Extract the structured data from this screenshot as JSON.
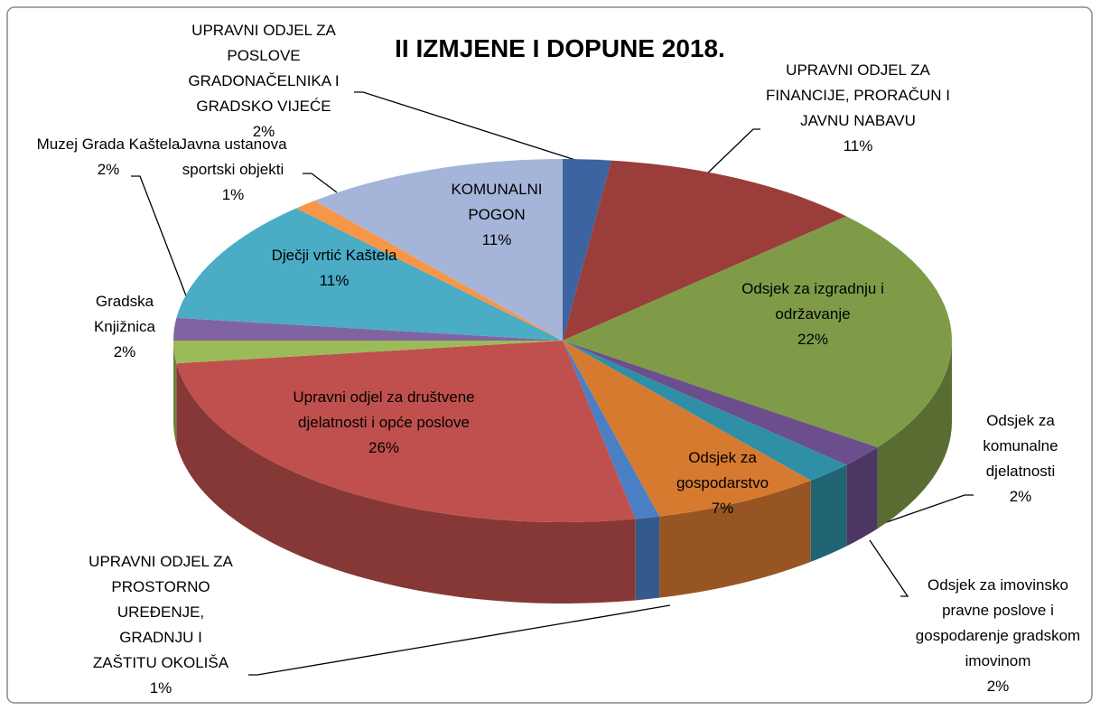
{
  "chart_data": {
    "type": "pie",
    "title": "II IZMJENE I DOPUNE 2018.",
    "categories": [
      "UPRAVNI ODJEL ZA POSLOVE GRADONAČELNIKA I GRADSKO VIJEĆE",
      "UPRAVNI ODJEL ZA FINANCIJE, PRORAČUN I JAVNU NABAVU",
      "Odsjek za izgradnju i održavanje",
      "Odsjek za komunalne djelatnosti",
      "Odsjek za imovinsko pravne poslove i gospodarenje gradskom imovinom",
      "Odsjek za gospodarstvo",
      "UPRAVNI ODJEL ZA PROSTORNO UREĐENJE, GRADNJU I ZAŠTITU OKOLIŠA",
      "Upravni odjel za društvene djelatnosti i opće poslove",
      "Gradska Knjižnica",
      "Muzej Grada Kaštela",
      "Dječji vrtić Kaštela",
      "Javna ustanova sportski objekti",
      "KOMUNALNI POGON"
    ],
    "values": [
      2,
      11,
      22,
      2,
      2,
      7,
      1,
      26,
      2,
      2,
      11,
      1,
      11
    ],
    "value_labels": [
      "2%",
      "11%",
      "22%",
      "2%",
      "2%",
      "7%",
      "1%",
      "26%",
      "2%",
      "2%",
      "11%",
      "1%",
      "11%"
    ],
    "colors": [
      "#3b64a0",
      "#9b3d3b",
      "#7f9b48",
      "#6b4f8c",
      "#2f8fa6",
      "#d67a30",
      "#4a7fc6",
      "#c0504d",
      "#9bbb59",
      "#8064a2",
      "#4bacc6",
      "#f79646",
      "#a5b5d9"
    ]
  }
}
